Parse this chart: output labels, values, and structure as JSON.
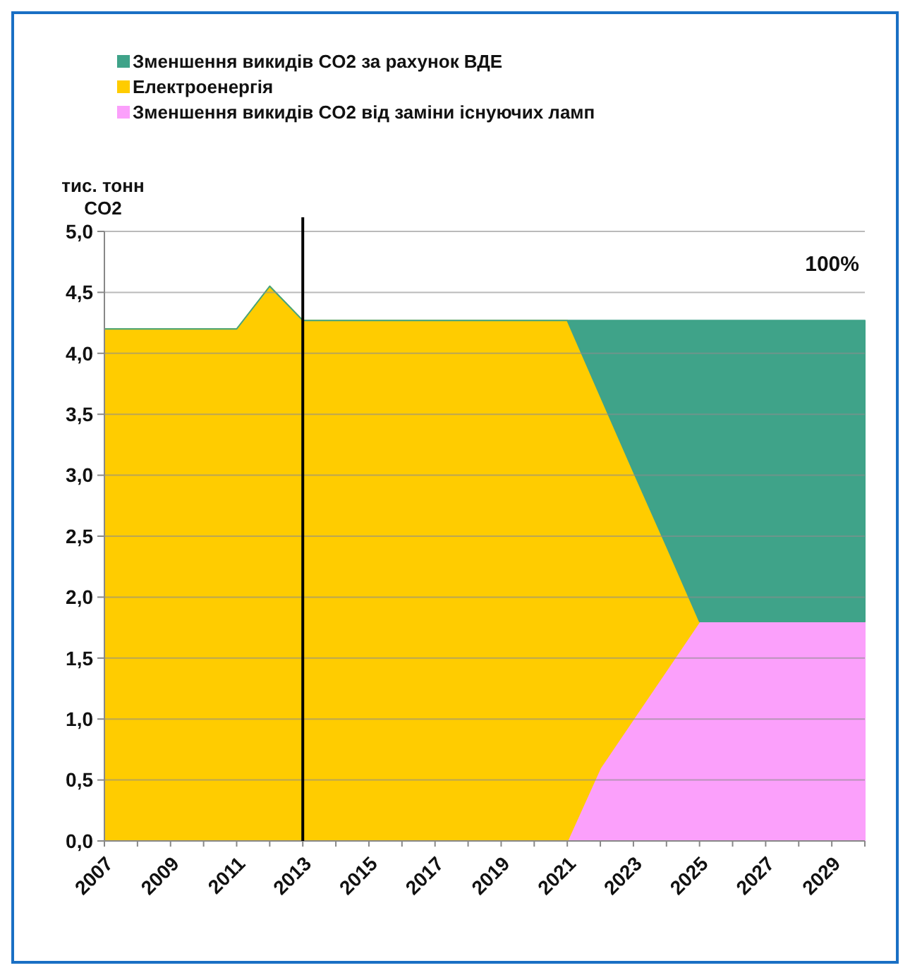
{
  "chart_data": {
    "type": "area",
    "stacked": true,
    "ylabel": "тис. тонн CO2",
    "x": [
      2007,
      2008,
      2009,
      2010,
      2011,
      2012,
      2013,
      2014,
      2015,
      2016,
      2017,
      2018,
      2019,
      2020,
      2021,
      2022,
      2023,
      2024,
      2025,
      2026,
      2027,
      2028,
      2029,
      2030
    ],
    "xlim": [
      2007,
      2030
    ],
    "xticks": [
      2007,
      2009,
      2011,
      2013,
      2015,
      2017,
      2019,
      2021,
      2023,
      2025,
      2027,
      2029
    ],
    "ylim": [
      0,
      5
    ],
    "yticks": [
      {
        "value": 0,
        "label": "0,0"
      },
      {
        "value": 0.5,
        "label": "0,5"
      },
      {
        "value": 1,
        "label": "1,0"
      },
      {
        "value": 1.5,
        "label": "1,5"
      },
      {
        "value": 2,
        "label": "2,0"
      },
      {
        "value": 2.5,
        "label": "2,5"
      },
      {
        "value": 3,
        "label": "3,0"
      },
      {
        "value": 3.5,
        "label": "3,5"
      },
      {
        "value": 4,
        "label": "4,0"
      },
      {
        "value": 4.5,
        "label": "4,5"
      },
      {
        "value": 5,
        "label": "5,0"
      }
    ],
    "grid": "y",
    "legend": "top left",
    "series": [
      {
        "name": "Зменшення викидів CO2 від заміни існуючих ламп",
        "color": "#fba0fb",
        "values": [
          0,
          0,
          0,
          0,
          0,
          0,
          0,
          0,
          0,
          0,
          0,
          0,
          0,
          0,
          0,
          0.6,
          1.0,
          1.4,
          1.8,
          1.8,
          1.8,
          1.8,
          1.8,
          1.8
        ]
      },
      {
        "name": "Електроенергія",
        "color": "#ffcc00",
        "values": [
          4.2,
          4.2,
          4.2,
          4.2,
          4.2,
          4.55,
          4.27,
          4.27,
          4.27,
          4.27,
          4.27,
          4.27,
          4.27,
          4.27,
          4.27,
          3.05,
          2.03,
          1.02,
          0,
          0,
          0,
          0,
          0,
          0
        ]
      },
      {
        "name": "Зменшення викидів CO2 за рахунок ВДЕ",
        "color": "#3fa389",
        "values": [
          0,
          0,
          0,
          0,
          0,
          0,
          0,
          0,
          0,
          0,
          0,
          0,
          0,
          0,
          0,
          0.62,
          1.24,
          1.85,
          2.47,
          2.47,
          2.47,
          2.47,
          2.47,
          2.47
        ]
      }
    ],
    "ref_lines": [
      {
        "axis": "x",
        "value": 2013,
        "color": "#000000"
      }
    ],
    "annotations": [
      "100%"
    ]
  }
}
